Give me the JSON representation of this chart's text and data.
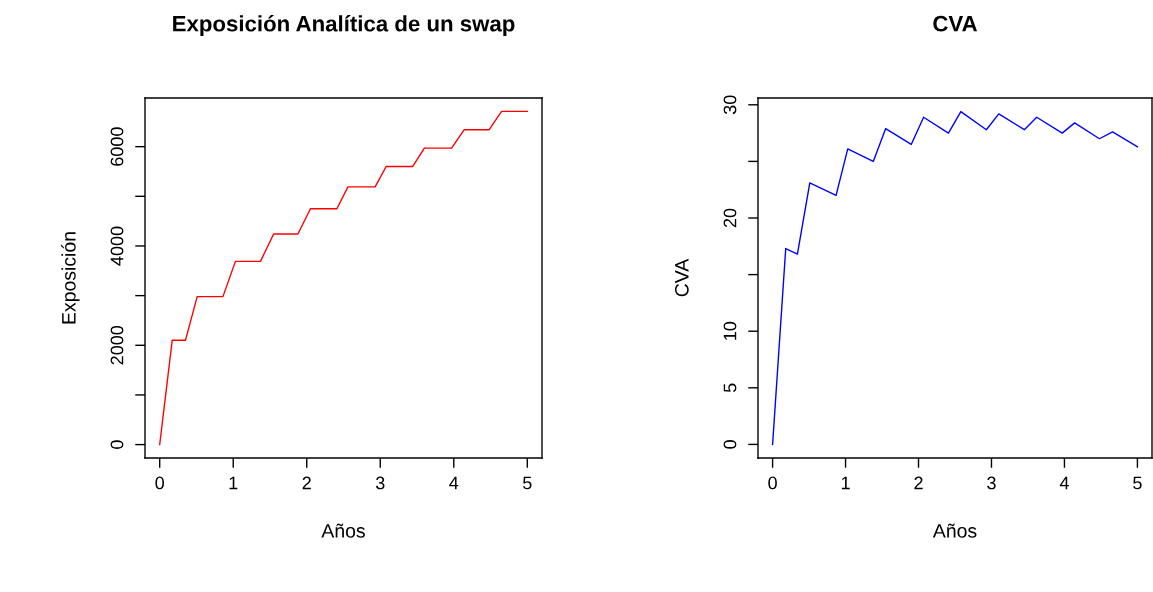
{
  "chart_data": [
    {
      "type": "line",
      "title": "Exposición Analítica de un swap",
      "xlabel": "Años",
      "ylabel": "Exposición",
      "x": [
        0,
        0.17,
        0.35,
        0.51,
        0.86,
        1.03,
        1.37,
        1.55,
        1.88,
        2.05,
        2.41,
        2.56,
        2.93,
        3.08,
        3.44,
        3.6,
        3.97,
        4.14,
        4.48,
        4.65,
        5
      ],
      "series": [
        {
          "color": "#ff0000",
          "values": [
            0,
            2100,
            2100,
            2980,
            2980,
            3690,
            3690,
            4240,
            4240,
            4750,
            4750,
            5190,
            5190,
            5600,
            5600,
            5970,
            5970,
            6340,
            6340,
            6710,
            6710
          ]
        }
      ],
      "xlim": [
        -0.2,
        5.2
      ],
      "ylim": [
        -270,
        6980
      ],
      "xticks": [
        0,
        1,
        2,
        3,
        4,
        5
      ],
      "yticks": [
        0,
        {
          "value": 1000,
          "label": null
        },
        2000,
        {
          "value": 3000,
          "label": null
        },
        4000,
        {
          "value": 5000,
          "label": null
        },
        6000
      ],
      "grid": false,
      "marker": "none",
      "line_style": "solid"
    },
    {
      "type": "line",
      "title": "CVA",
      "xlabel": "Años",
      "ylabel": "CVA",
      "x": [
        0,
        0.18,
        0.34,
        0.51,
        0.87,
        1.03,
        1.38,
        1.55,
        1.9,
        2.07,
        2.41,
        2.58,
        2.93,
        3.1,
        3.45,
        3.62,
        3.97,
        4.14,
        4.48,
        4.66,
        5
      ],
      "series": [
        {
          "color": "#0000ff",
          "values": [
            0,
            17.3,
            16.8,
            23.1,
            22.0,
            26.1,
            25.0,
            27.9,
            26.5,
            28.9,
            27.5,
            29.4,
            27.8,
            29.2,
            27.8,
            28.9,
            27.5,
            28.4,
            27.0,
            27.6,
            26.3
          ]
        }
      ],
      "xlim": [
        -0.2,
        5.2
      ],
      "ylim": [
        -1.2,
        30.6
      ],
      "xticks": [
        0,
        1,
        2,
        3,
        4,
        5
      ],
      "yticks": [
        0,
        5,
        10,
        {
          "value": 15,
          "label": null
        },
        20,
        {
          "value": 25,
          "label": null
        },
        30
      ],
      "grid": false,
      "marker": "none",
      "line_style": "solid"
    }
  ]
}
